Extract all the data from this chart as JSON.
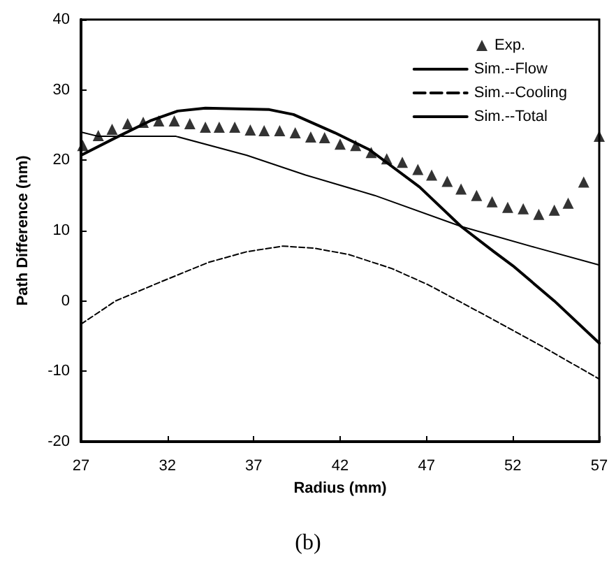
{
  "chart_data": {
    "type": "line",
    "xlabel": "Radius (mm)",
    "ylabel": "Path Difference (nm)",
    "annotations": [
      "(b)"
    ],
    "xlim": [
      27,
      57
    ],
    "xticks": [
      27,
      32,
      37,
      42,
      47,
      52,
      57
    ],
    "ylim": [
      -20,
      40
    ],
    "yticks": [
      -20,
      -10,
      0,
      10,
      20,
      30,
      40
    ],
    "grid": false,
    "legend": "top right",
    "series": [
      {
        "name": "Exp.",
        "type": "scatter",
        "marker": "triangle",
        "color": "#000000",
        "x": [
          27.1,
          28.0,
          28.8,
          29.7,
          30.6,
          31.5,
          32.4,
          33.3,
          34.2,
          35.0,
          35.9,
          36.8,
          37.6,
          38.5,
          39.4,
          40.3,
          41.1,
          42.0,
          42.9,
          43.8,
          44.7,
          45.6,
          46.5,
          47.3,
          48.2,
          49.0,
          49.9,
          50.8,
          51.7,
          52.6,
          53.5,
          54.4,
          55.2,
          56.1,
          57.0
        ],
        "values": [
          22.1,
          23.5,
          24.4,
          25.2,
          25.4,
          25.6,
          25.6,
          25.2,
          24.7,
          24.7,
          24.7,
          24.3,
          24.2,
          24.2,
          23.9,
          23.3,
          23.2,
          22.3,
          22.1,
          21.1,
          20.2,
          19.7,
          18.7,
          17.9,
          17.0,
          15.9,
          15.0,
          14.1,
          13.3,
          13.1,
          12.3,
          12.9,
          13.9,
          16.9,
          23.4
        ]
      },
      {
        "name": "Sim.--Flow",
        "type": "line",
        "marker": "none",
        "line_style": "solid",
        "color": "#000000",
        "x": [
          27,
          28,
          32.5,
          36.6,
          40,
          44,
          49,
          53.3,
          57
        ],
        "values": [
          24.0,
          23.4,
          23.4,
          20.7,
          17.9,
          15.0,
          10.6,
          7.6,
          5.1
        ]
      },
      {
        "name": "Sim.--Cooling",
        "type": "line",
        "marker": "none",
        "line_style": "dashed",
        "color": "#000000",
        "x": [
          27,
          29,
          31.7,
          34.4,
          36.6,
          38.7,
          40.5,
          42.5,
          45,
          47.1,
          50.6,
          53.8,
          57
        ],
        "values": [
          -3.3,
          0,
          2.8,
          5.5,
          7.0,
          7.8,
          7.5,
          6.6,
          4.6,
          2.3,
          -2.3,
          -6.6,
          -11.1
        ]
      },
      {
        "name": "Sim.--Total",
        "type": "line",
        "marker": "none",
        "line_style": "solid",
        "color": "#000000",
        "x": [
          27,
          29,
          31,
          32.6,
          34.2,
          37.9,
          39.3,
          41.7,
          43.7,
          46.6,
          49,
          50.9,
          52,
          54.4,
          57
        ],
        "values": [
          20.7,
          23.2,
          25.6,
          27.0,
          27.4,
          27.2,
          26.5,
          23.9,
          21.5,
          16.2,
          10.6,
          7.0,
          5.0,
          0,
          -6.0
        ]
      }
    ]
  }
}
